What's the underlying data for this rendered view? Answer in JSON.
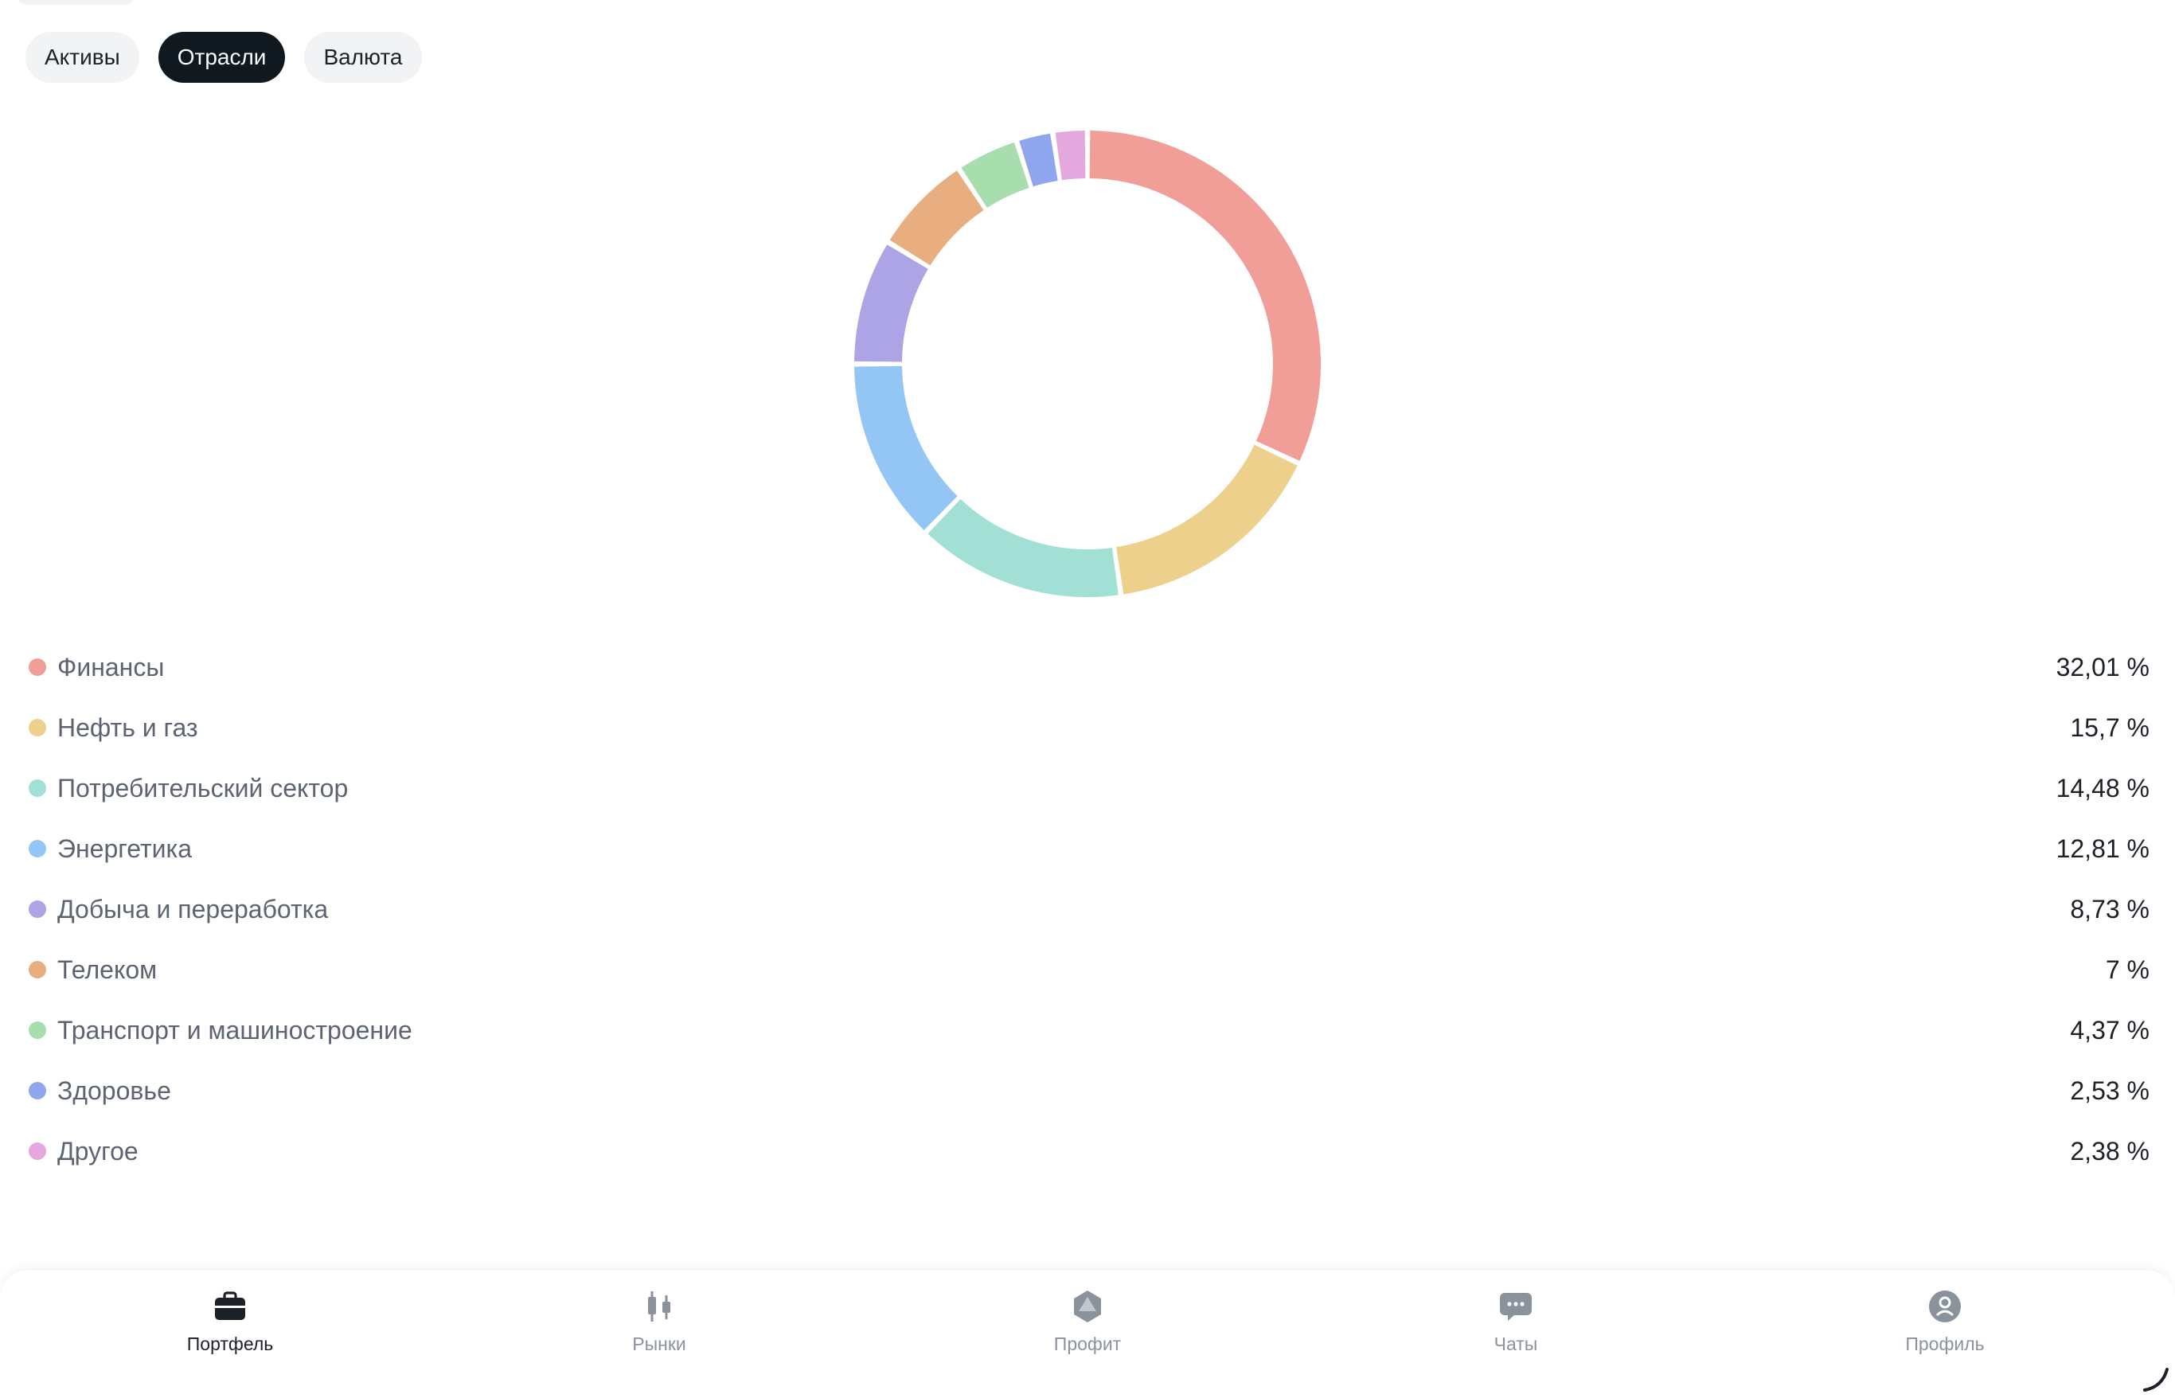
{
  "tabs": [
    {
      "label": "Активы",
      "active": false
    },
    {
      "label": "Отрасли",
      "active": true
    },
    {
      "label": "Валюта",
      "active": false
    }
  ],
  "chart_data": {
    "type": "pie",
    "style": "donut",
    "categories": [
      "Финансы",
      "Нефть и газ",
      "Потребительский сектор",
      "Энергетика",
      "Добыча и переработка",
      "Телеком",
      "Транспорт и машиностроение",
      "Здоровье",
      "Другое"
    ],
    "values": [
      32.01,
      15.7,
      14.48,
      12.81,
      8.73,
      7,
      4.37,
      2.53,
      2.38
    ],
    "colors": [
      "#f19e98",
      "#ecd08b",
      "#a2e0d6",
      "#93c6f5",
      "#aca4e4",
      "#e9ae80",
      "#a8ddad",
      "#8fa6ee",
      "#e4a8df"
    ],
    "legend": "bottom",
    "title": ""
  },
  "legend": [
    {
      "label": "Финансы",
      "value": "32,01 %",
      "color": "#f19e98"
    },
    {
      "label": "Нефть и газ",
      "value": "15,7 %",
      "color": "#ecd08b"
    },
    {
      "label": "Потребительский сектор",
      "value": "14,48 %",
      "color": "#a2e0d6"
    },
    {
      "label": "Энергетика",
      "value": "12,81 %",
      "color": "#93c6f5"
    },
    {
      "label": "Добыча и переработка",
      "value": "8,73 %",
      "color": "#aca4e4"
    },
    {
      "label": "Телеком",
      "value": "7 %",
      "color": "#e9ae80"
    },
    {
      "label": "Транспорт и машиностроение",
      "value": "4,37 %",
      "color": "#a8ddad"
    },
    {
      "label": "Здоровье",
      "value": "2,53 %",
      "color": "#8fa6ee"
    },
    {
      "label": "Другое",
      "value": "2,38 %",
      "color": "#e4a8df"
    }
  ],
  "nav": {
    "items": [
      {
        "label": "Портфель",
        "icon": "briefcase-icon",
        "active": true
      },
      {
        "label": "Рынки",
        "icon": "candlestick-icon",
        "active": false
      },
      {
        "label": "Профит",
        "icon": "profit-logo-icon",
        "active": false
      },
      {
        "label": "Чаты",
        "icon": "chat-icon",
        "active": false
      },
      {
        "label": "Профиль",
        "icon": "profile-icon",
        "active": false
      }
    ]
  },
  "colors": {
    "active_tab_bg": "#101820",
    "inactive_tab_bg": "#f2f3f5",
    "text_primary": "#1c2127",
    "text_secondary": "#5b6470",
    "nav_inactive": "#8a929c"
  }
}
